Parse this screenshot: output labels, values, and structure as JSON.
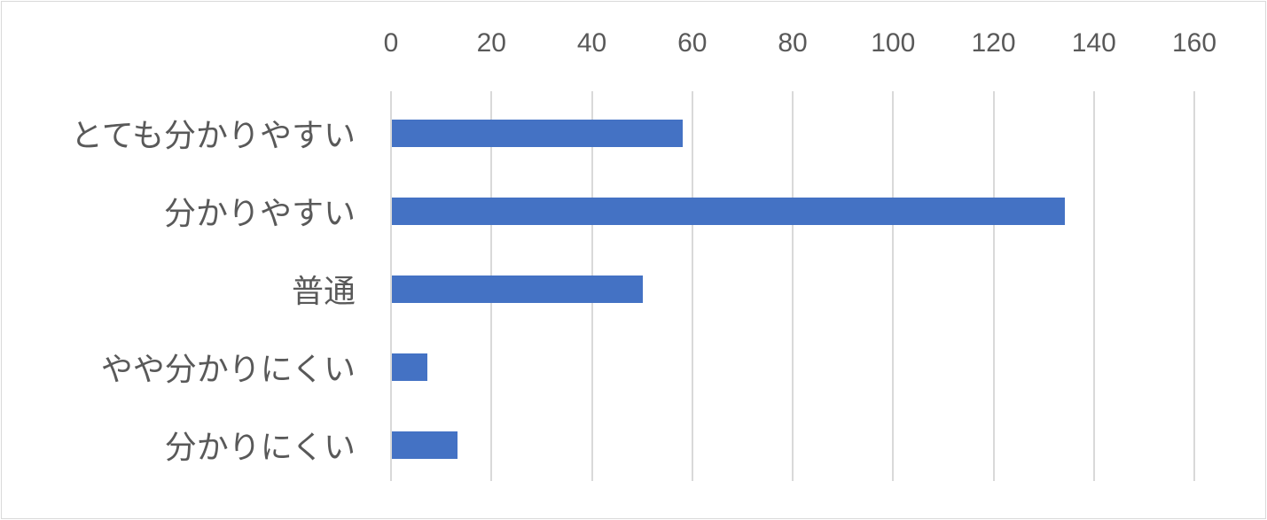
{
  "chart_data": {
    "type": "bar",
    "orientation": "horizontal",
    "title": "",
    "xlabel": "",
    "ylabel": "",
    "categories": [
      "とても分かりやすい",
      "分かりやすい",
      "普通",
      "やや分かりにくい",
      "分かりにくい"
    ],
    "values": [
      58,
      134,
      50,
      7,
      13
    ],
    "xlim": [
      0,
      160
    ],
    "x_ticks": [
      "0",
      "20",
      "40",
      "60",
      "80",
      "100",
      "120",
      "140",
      "160"
    ],
    "x_axis_position": "top",
    "grid": true,
    "legend": null,
    "bar_color": "#4472c4"
  }
}
